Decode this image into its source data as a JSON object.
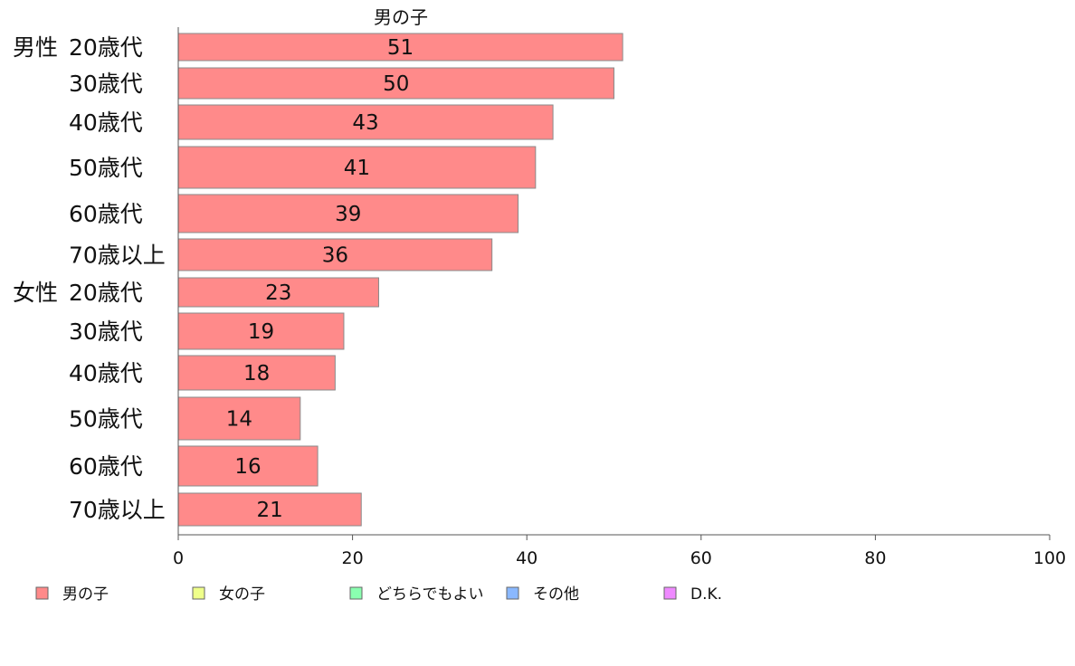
{
  "chart_data": {
    "type": "bar",
    "orientation": "horizontal",
    "title": "男の子",
    "xlim": [
      0,
      100
    ],
    "x_ticks": [
      "0",
      "20",
      "40",
      "60",
      "80",
      "100"
    ],
    "rows": [
      {
        "group": "男性",
        "age": "20歳代",
        "value": 51
      },
      {
        "group": "",
        "age": "30歳代",
        "value": 50
      },
      {
        "group": "",
        "age": "40歳代",
        "value": 43
      },
      {
        "group": "",
        "age": "50歳代",
        "value": 41
      },
      {
        "group": "",
        "age": "60歳代",
        "value": 39
      },
      {
        "group": "",
        "age": "70歳以上",
        "value": 36
      },
      {
        "group": "女性",
        "age": "20歳代",
        "value": 23
      },
      {
        "group": "",
        "age": "30歳代",
        "value": 19
      },
      {
        "group": "",
        "age": "40歳代",
        "value": 18
      },
      {
        "group": "",
        "age": "50歳代",
        "value": 14
      },
      {
        "group": "",
        "age": "60歳代",
        "value": 16
      },
      {
        "group": "",
        "age": "70歳以上",
        "value": 21
      }
    ],
    "series_color": "#ff8a8a",
    "legend_placement": "bottom",
    "legend": [
      {
        "label": "男の子",
        "color": "#ff8a8a"
      },
      {
        "label": "女の子",
        "color": "#efff8a"
      },
      {
        "label": "どちらでもよい",
        "color": "#8affb0"
      },
      {
        "label": "その他",
        "color": "#8ab8ff"
      },
      {
        "label": "D.K.",
        "color": "#ef8aff"
      }
    ]
  }
}
